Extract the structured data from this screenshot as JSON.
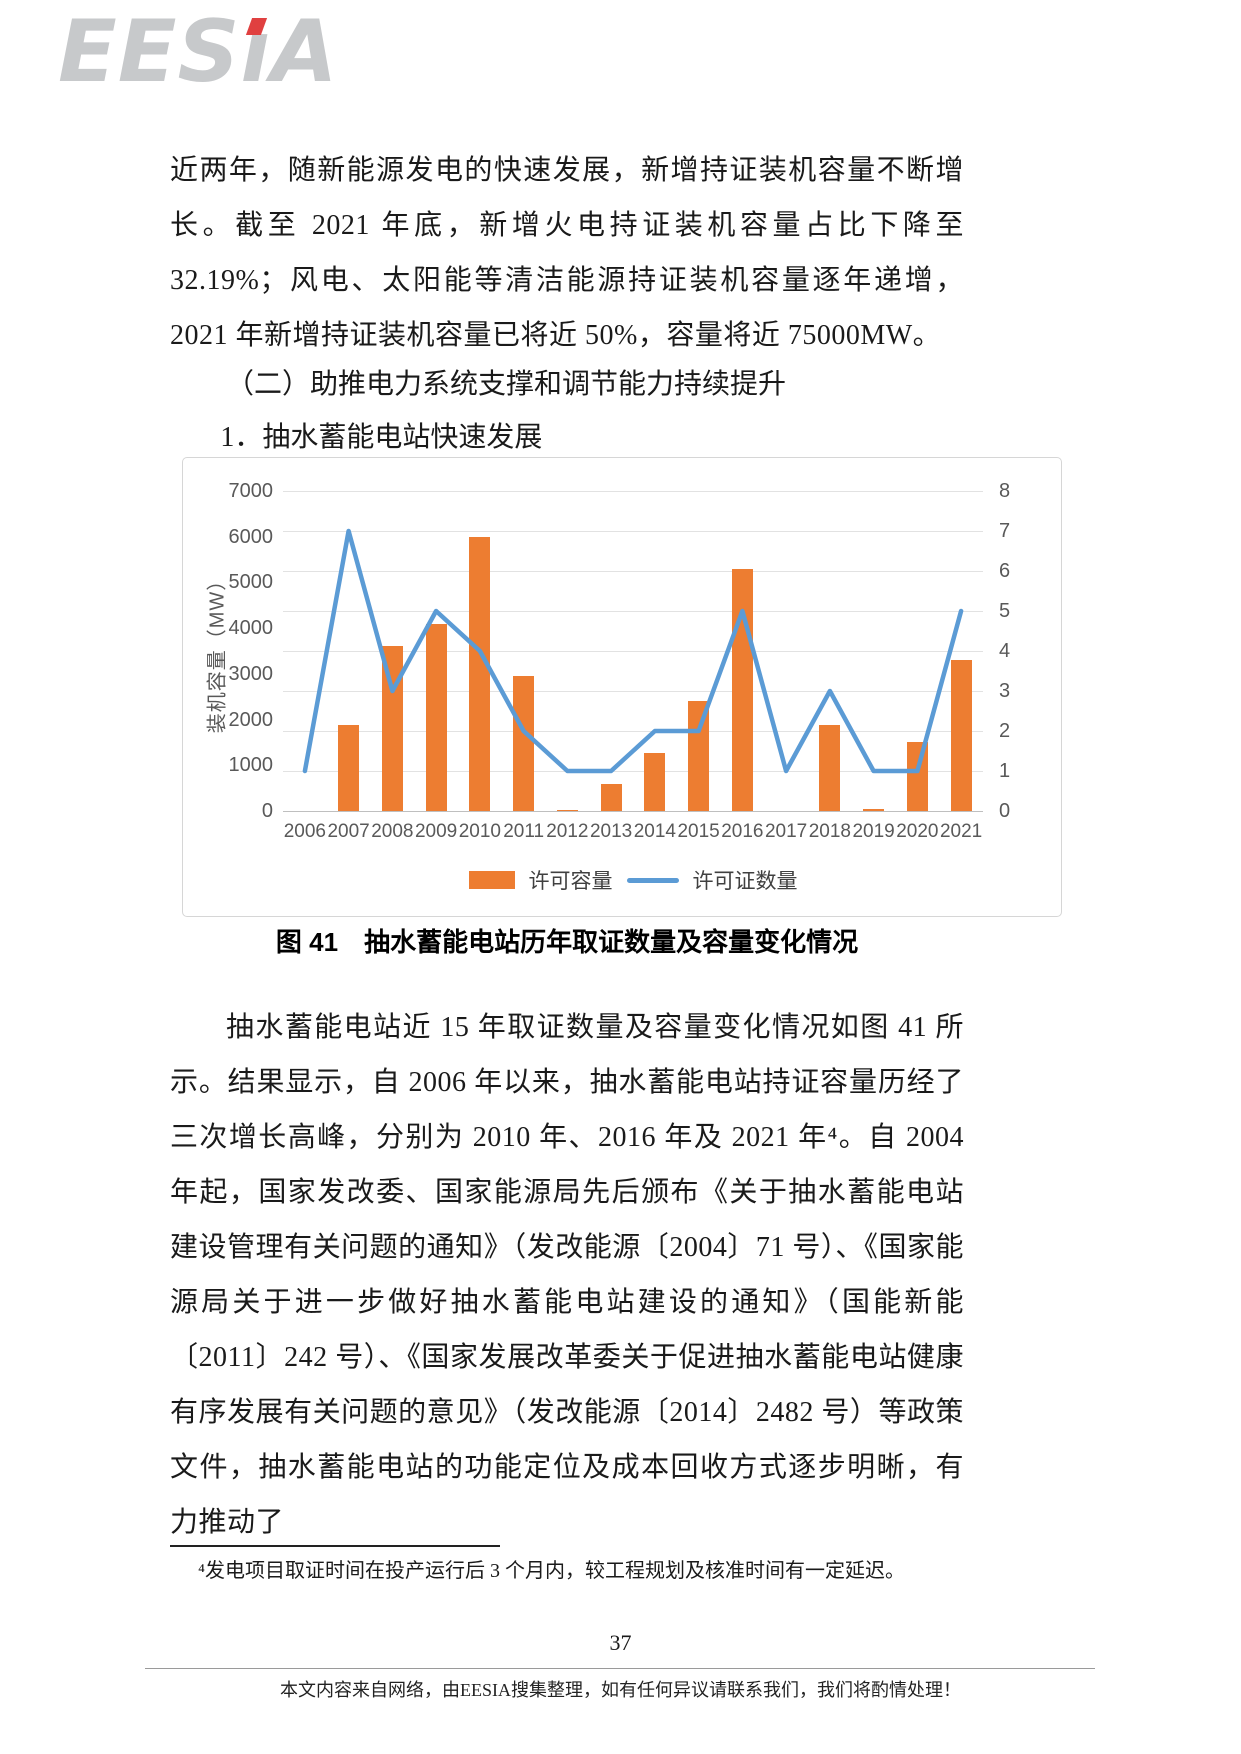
{
  "logo": {
    "pre": "EES",
    "i": "ı",
    "post": "A",
    "full_text": "EESIA",
    "accent_color": "#e04040"
  },
  "body": {
    "paragraph1": "近两年，随新能源发电的快速发展，新增持证装机容量不断增长。截至 2021 年底，新增火电持证装机容量占比下降至 32.19%；风电、太阳能等清洁能源持证装机容量逐年递增，2021 年新增持证装机容量已将近 50%，容量将近 75000MW。",
    "heading_section": "（二）助推电力系统支撑和调节能力持续提升",
    "heading_item": "1．抽水蓄能电站快速发展",
    "figure_caption": "图 41　抽水蓄能电站历年取证数量及容量变化情况",
    "paragraph2": "抽水蓄能电站近 15 年取证数量及容量变化情况如图 41 所示。结果显示，自 2006 年以来，抽水蓄能电站持证容量历经了三次增长高峰，分别为 2010 年、2016 年及 2021 年⁴。自 2004 年起，国家发改委、国家能源局先后颁布《关于抽水蓄能电站建设管理有关问题的通知》（发改能源〔2004〕71 号）、《国家能源局关于进一步做好抽水蓄能电站建设的通知》（国能新能〔2011〕242 号）、《国家发展改革委关于促进抽水蓄能电站健康有序发展有关问题的意见》（发改能源〔2014〕2482 号）等政策文件，抽水蓄能电站的功能定位及成本回收方式逐步明晰，有力推动了",
    "footnote": "⁴发电项目取证时间在投产运行后 3 个月内，较工程规划及核准时间有一定延迟。"
  },
  "chart_data": {
    "type": "combo",
    "title": "",
    "categories": [
      "2006",
      "2007",
      "2008",
      "2009",
      "2010",
      "2011",
      "2012",
      "2013",
      "2014",
      "2015",
      "2016",
      "2017",
      "2018",
      "2019",
      "2020",
      "2021"
    ],
    "series": [
      {
        "name": "许可容量",
        "type": "bar",
        "axis": "left",
        "color": "#ED7D31",
        "values": [
          0,
          1880,
          3600,
          4100,
          6000,
          2950,
          30,
          600,
          1280,
          2400,
          5300,
          0,
          1880,
          50,
          1500,
          3300
        ]
      },
      {
        "name": "许可证数量",
        "type": "line",
        "axis": "right",
        "color": "#5B9BD5",
        "values": [
          1,
          7,
          3,
          5,
          4,
          2,
          1,
          1,
          2,
          2,
          5,
          1,
          3,
          1,
          1,
          5
        ]
      }
    ],
    "left_axis": {
      "label": "装机容量（MW）",
      "min": 0,
      "max": 7000,
      "step": 1000
    },
    "right_axis": {
      "label": "",
      "min": 0,
      "max": 8,
      "step": 1
    },
    "grid": true,
    "legend_position": "bottom"
  },
  "footer": {
    "page_number": "37",
    "disclaimer": "本文内容来自网络，由EESIA搜集整理，如有任何异议请联系我们，我们将酌情处理！"
  }
}
